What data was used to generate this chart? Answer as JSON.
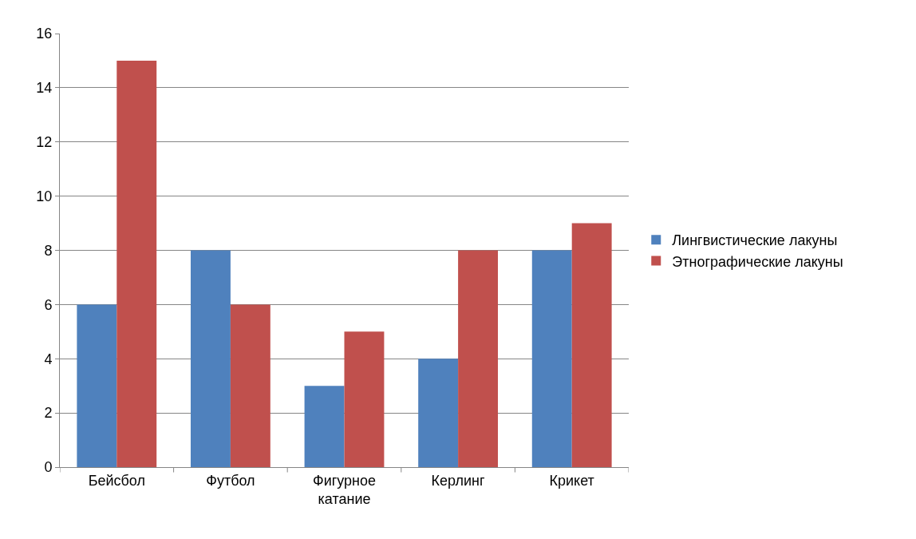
{
  "chart_data": {
    "type": "bar",
    "categories": [
      "Бейсбол",
      "Футбол",
      "Фигурное катание",
      "Керлинг",
      "Крикет"
    ],
    "series": [
      {
        "name": "Лингвистические лакуны",
        "color": "#4f81bd",
        "values": [
          6,
          8,
          3,
          4,
          8
        ]
      },
      {
        "name": "Этнографические лакуны",
        "color": "#c0504d",
        "values": [
          15,
          6,
          5,
          8,
          9
        ]
      }
    ],
    "ylim": [
      0,
      16
    ],
    "yticks": [
      0,
      2,
      4,
      6,
      8,
      10,
      12,
      14,
      16
    ],
    "grid": "y",
    "legend": "right"
  }
}
